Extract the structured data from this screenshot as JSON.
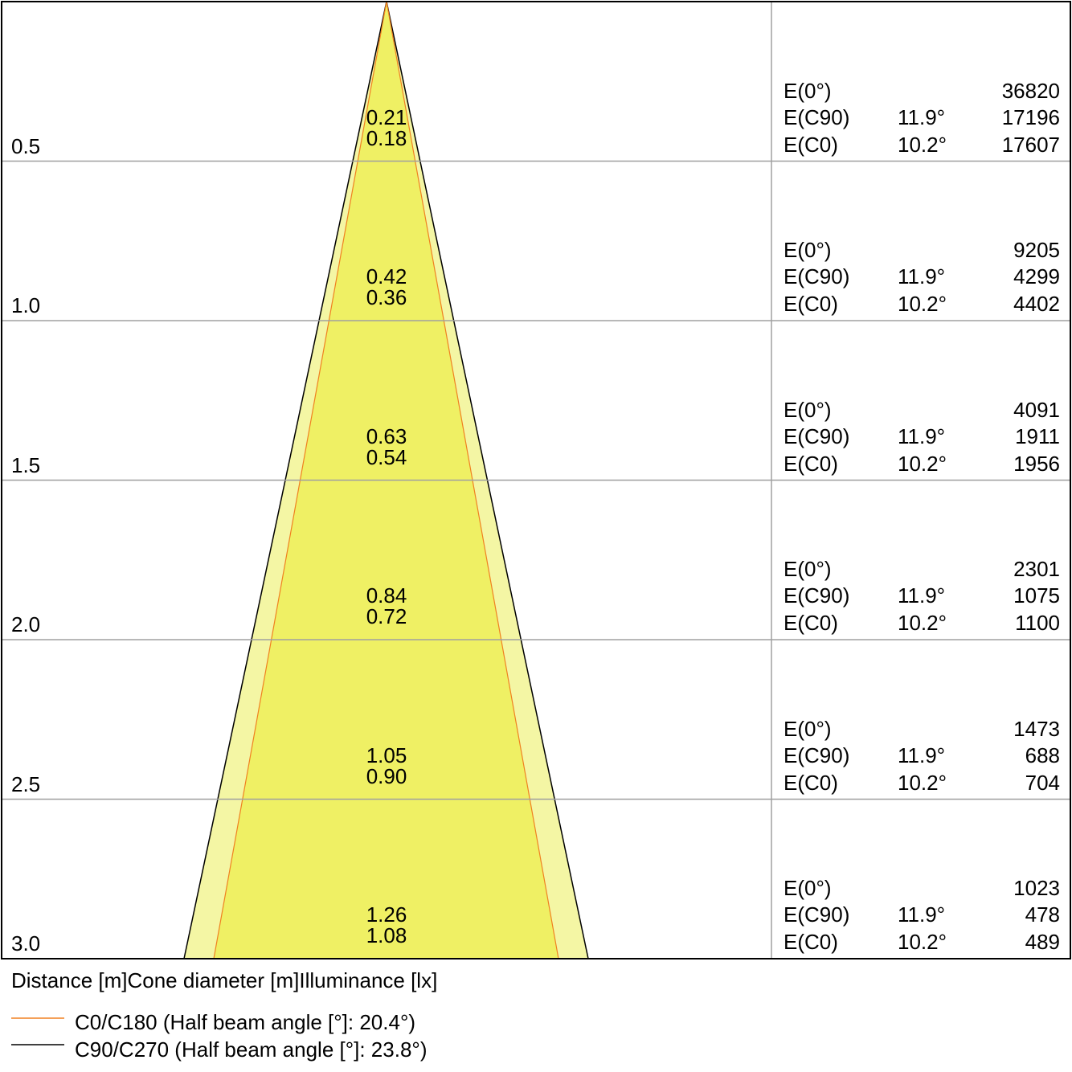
{
  "colors": {
    "outer_fill": "#f4f6a4",
    "inner_fill": "#eff064",
    "c0_line": "#f08020",
    "c90_line": "#000000",
    "grid": "#a0a0a0"
  },
  "rows": [
    {
      "distance": "0.5",
      "c90_diameter": "0.21",
      "c0_diameter": "0.18",
      "e0_label": "E(0°)",
      "e0": "36820",
      "ec90_label": "E(C90)",
      "ec90_angle": "11.9°",
      "ec90": "17196",
      "ec0_label": "E(C0)",
      "ec0_angle": "10.2°",
      "ec0": "17607"
    },
    {
      "distance": "1.0",
      "c90_diameter": "0.42",
      "c0_diameter": "0.36",
      "e0_label": "E(0°)",
      "e0": "9205",
      "ec90_label": "E(C90)",
      "ec90_angle": "11.9°",
      "ec90": "4299",
      "ec0_label": "E(C0)",
      "ec0_angle": "10.2°",
      "ec0": "4402"
    },
    {
      "distance": "1.5",
      "c90_diameter": "0.63",
      "c0_diameter": "0.54",
      "e0_label": "E(0°)",
      "e0": "4091",
      "ec90_label": "E(C90)",
      "ec90_angle": "11.9°",
      "ec90": "1911",
      "ec0_label": "E(C0)",
      "ec0_angle": "10.2°",
      "ec0": "1956"
    },
    {
      "distance": "2.0",
      "c90_diameter": "0.84",
      "c0_diameter": "0.72",
      "e0_label": "E(0°)",
      "e0": "2301",
      "ec90_label": "E(C90)",
      "ec90_angle": "11.9°",
      "ec90": "1075",
      "ec0_label": "E(C0)",
      "ec0_angle": "10.2°",
      "ec0": "1100"
    },
    {
      "distance": "2.5",
      "c90_diameter": "1.05",
      "c0_diameter": "0.90",
      "e0_label": "E(0°)",
      "e0": "1473",
      "ec90_label": "E(C90)",
      "ec90_angle": "11.9°",
      "ec90": "688",
      "ec0_label": "E(C0)",
      "ec0_angle": "10.2°",
      "ec0": "704"
    },
    {
      "distance": "3.0",
      "c90_diameter": "1.26",
      "c0_diameter": "1.08",
      "e0_label": "E(0°)",
      "e0": "1023",
      "ec90_label": "E(C90)",
      "ec90_angle": "11.9°",
      "ec90": "478",
      "ec0_label": "E(C0)",
      "ec0_angle": "10.2°",
      "ec0": "489"
    }
  ],
  "header_caption": "Distance [m]Cone diameter [m]Illuminance [lx]",
  "legend": [
    {
      "label": "C0/C180 (Half beam angle [°]: 20.4°)"
    },
    {
      "label": "C90/C270 (Half beam angle [°]: 23.8°)"
    }
  ]
}
